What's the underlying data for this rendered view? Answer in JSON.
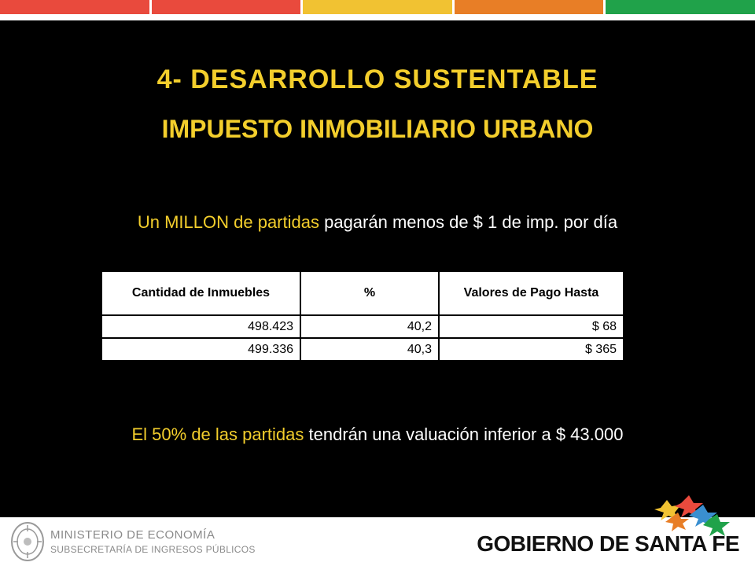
{
  "top_bar_colors": [
    "#e94a3d",
    "#e94a3d",
    "#f1c232",
    "#e87e26",
    "#20a24a"
  ],
  "title_line_1": "4- DESARROLLO SUSTENTABLE",
  "title_line_2": "IMPUESTO INMOBILIARIO URBANO",
  "statement_1": {
    "highlight": "Un MILLON de partidas",
    "rest": " pagarán menos de $ 1 de imp. por día"
  },
  "table": {
    "headers": [
      "Cantidad de Inmuebles",
      "%",
      "Valores de Pago Hasta"
    ],
    "rows": [
      [
        "498.423",
        "40,2",
        "$ 68"
      ],
      [
        "499.336",
        "40,3",
        "$ 365"
      ]
    ]
  },
  "statement_2": {
    "highlight": "El 50% de las partidas",
    "rest": " tendrán una valuación inferior a $ 43.000"
  },
  "footer": {
    "ministry_name": "MINISTERIO DE ECONOMÍA",
    "ministry_sub": "SUBSECRETARÍA DE INGRESOS PÚBLICOS",
    "government_name": "GOBIERNO DE SANTA FE"
  },
  "icons": {
    "seal": "ministry-seal-icon",
    "stars": "santa-fe-stars-icon"
  },
  "colors": {
    "accent_yellow": "#f3ce2c",
    "slide_background": "#000000"
  }
}
